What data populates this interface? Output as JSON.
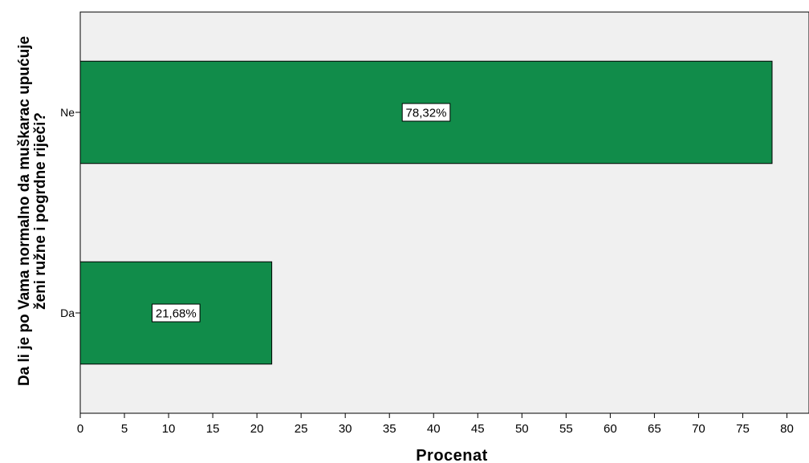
{
  "chart_data": {
    "type": "bar",
    "orientation": "horizontal",
    "categories": [
      "Ne",
      "Da"
    ],
    "values": [
      78.32,
      21.68
    ],
    "data_labels": [
      "78,32%",
      "21,68%"
    ],
    "xlabel": "Procenat",
    "ylabel_lines": [
      "Da li je po Vama normalno da muškarac upućuje",
      "ženi ružne i pogrdne riječi?"
    ],
    "xlim": [
      0,
      82.5
    ],
    "xticks": [
      0,
      5,
      10,
      15,
      20,
      25,
      30,
      35,
      40,
      45,
      50,
      55,
      60,
      65,
      70,
      75,
      80
    ],
    "grid": false,
    "bar_color": "#118c4a",
    "plot_background": "#f0f0f0"
  }
}
